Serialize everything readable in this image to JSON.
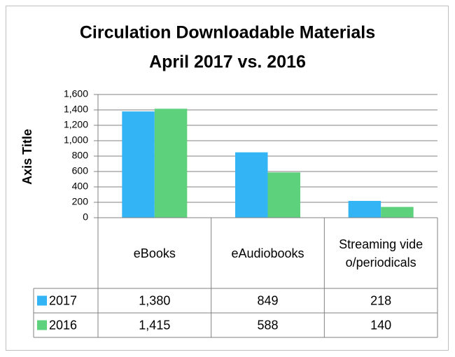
{
  "chart_data": {
    "type": "bar",
    "title": [
      "Circulation Downloadable Materials",
      "April 2017 vs. 2016"
    ],
    "y_label": "Axis Title",
    "categories": [
      "eBooks",
      "eAudiobooks",
      "Streaming video/periodicals"
    ],
    "series": [
      {
        "name": "2017",
        "color": "#33b4f5",
        "values": [
          1380,
          849,
          218
        ],
        "value_labels": [
          "1,380",
          "849",
          "218"
        ]
      },
      {
        "name": "2016",
        "color": "#5dd17b",
        "values": [
          1415,
          588,
          140
        ],
        "value_labels": [
          "1,415",
          "588",
          "140"
        ]
      }
    ],
    "ylim": [
      0,
      1600
    ],
    "yticks": [
      0,
      200,
      400,
      600,
      800,
      {
        "value": 1000,
        "label": "1,000"
      },
      {
        "value": 1200,
        "label": "1,200"
      },
      {
        "value": 1400,
        "label": "1,400"
      },
      {
        "value": 1600,
        "label": "1,600"
      }
    ],
    "grid": true
  }
}
